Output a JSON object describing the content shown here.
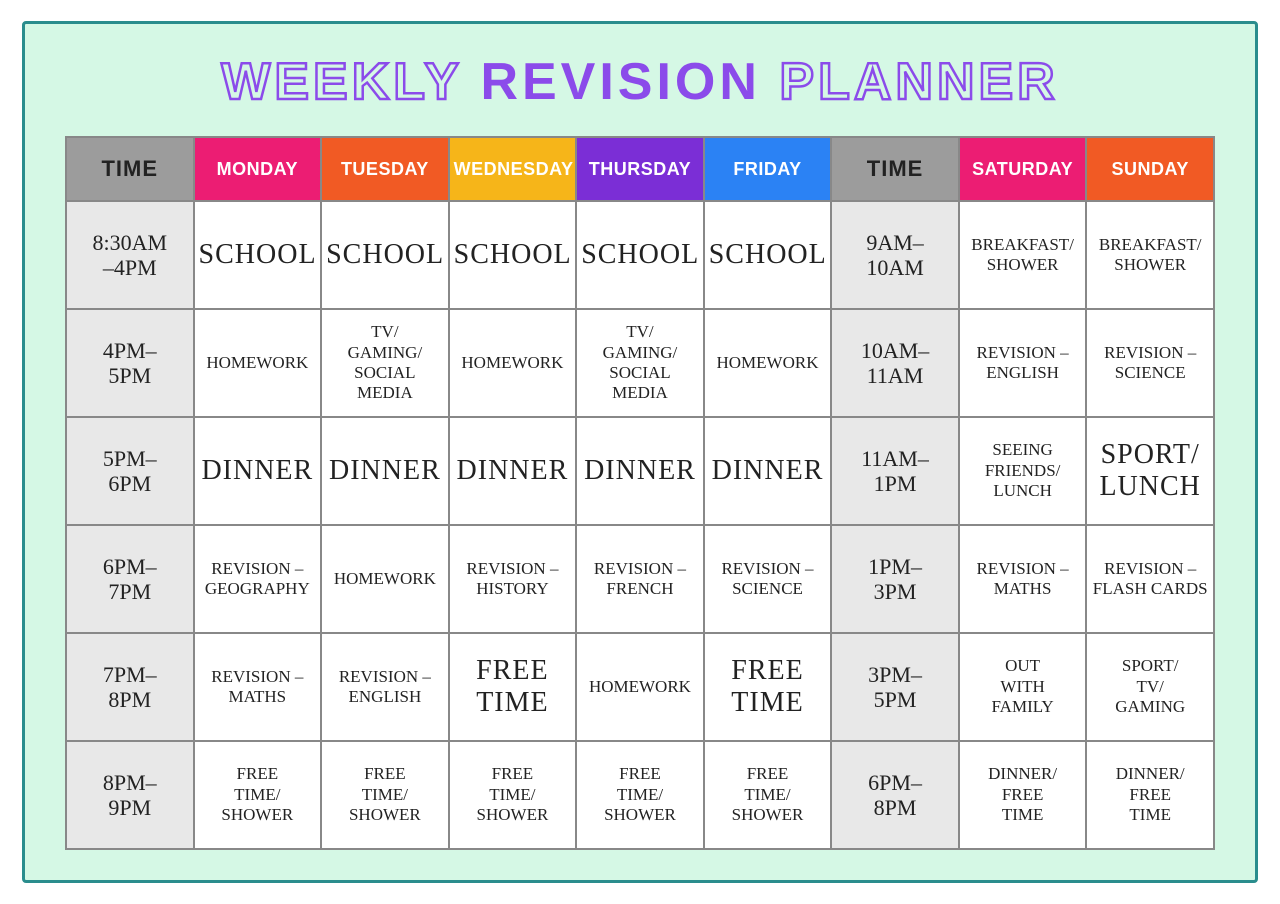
{
  "title": {
    "w1": "WEEKLY",
    "w2": "REVISION",
    "w3": "PLANNER"
  },
  "colors": {
    "time_hdr": "#9c9c9c",
    "monday": "#ec1d73",
    "tuesday": "#f15a24",
    "wednesday": "#f6b519",
    "thursday": "#7b2ed6",
    "friday": "#2b82f4",
    "saturday": "#ec1d73",
    "sunday": "#f15a24"
  },
  "headers": {
    "time1": "TIME",
    "mon": "MONDAY",
    "tue": "TUESDAY",
    "wed": "WEDNESDAY",
    "thu": "THURSDAY",
    "fri": "FRIDAY",
    "time2": "TIME",
    "sat": "SATURDAY",
    "sun": "SUNDAY"
  },
  "rows": [
    {
      "t1": "8:30AM\n–4PM",
      "mon": "SCHOOL",
      "tue": "SCHOOL",
      "wed": "SCHOOL",
      "thu": "SCHOOL",
      "fri": "SCHOOL",
      "t2": "9AM–\n10AM",
      "sat": "BREAKFAST/\nSHOWER",
      "sun": "BREAKFAST/\nSHOWER",
      "size": {
        "mon": "big",
        "tue": "big",
        "wed": "big",
        "thu": "big",
        "fri": "big",
        "sat": "small",
        "sun": "small"
      }
    },
    {
      "t1": "4PM–\n5PM",
      "mon": "HOMEWORK",
      "tue": "TV/\nGAMING/\nSOCIAL\nMEDIA",
      "wed": "HOMEWORK",
      "thu": "TV/\nGAMING/\nSOCIAL\nMEDIA",
      "fri": "HOMEWORK",
      "t2": "10AM–\n11AM",
      "sat": "REVISION –\nENGLISH",
      "sun": "REVISION –\nSCIENCE",
      "size": {
        "mon": "small",
        "tue": "small",
        "wed": "small",
        "thu": "small",
        "fri": "small",
        "sat": "small",
        "sun": "small"
      }
    },
    {
      "t1": "5PM–\n6PM",
      "mon": "DINNER",
      "tue": "DINNER",
      "wed": "DINNER",
      "thu": "DINNER",
      "fri": "DINNER",
      "t2": "11AM–\n1PM",
      "sat": "SEEING\nFRIENDS/\nLUNCH",
      "sun": "SPORT/\nLUNCH",
      "size": {
        "mon": "big",
        "tue": "big",
        "wed": "big",
        "thu": "big",
        "fri": "big",
        "sat": "small",
        "sun": "big"
      }
    },
    {
      "t1": "6PM–\n7PM",
      "mon": "REVISION –\nGEOGRAPHY",
      "tue": "HOMEWORK",
      "wed": "REVISION –\nHISTORY",
      "thu": "REVISION –\nFRENCH",
      "fri": "REVISION –\nSCIENCE",
      "t2": "1PM–\n3PM",
      "sat": "REVISION –\nMATHS",
      "sun": "REVISION –\nFLASH CARDS",
      "size": {
        "mon": "small",
        "tue": "small",
        "wed": "small",
        "thu": "small",
        "fri": "small",
        "sat": "small",
        "sun": "small"
      }
    },
    {
      "t1": "7PM–\n8PM",
      "mon": "REVISION –\nMATHS",
      "tue": "REVISION –\nENGLISH",
      "wed": "FREE\nTIME",
      "thu": "HOMEWORK",
      "fri": "FREE\nTIME",
      "t2": "3PM–\n5PM",
      "sat": "OUT\nWITH\nFAMILY",
      "sun": "SPORT/\nTV/\nGAMING",
      "size": {
        "mon": "small",
        "tue": "small",
        "wed": "big",
        "thu": "small",
        "fri": "big",
        "sat": "small",
        "sun": "small"
      }
    },
    {
      "t1": "8PM–\n9PM",
      "mon": "FREE\nTIME/\nSHOWER",
      "tue": "FREE\nTIME/\nSHOWER",
      "wed": "FREE\nTIME/\nSHOWER",
      "thu": "FREE\nTIME/\nSHOWER",
      "fri": "FREE\nTIME/\nSHOWER",
      "t2": "6PM–\n8PM",
      "sat": "DINNER/\nFREE\nTIME",
      "sun": "DINNER/\nFREE\nTIME",
      "size": {
        "mon": "small",
        "tue": "small",
        "wed": "small",
        "thu": "small",
        "fri": "small",
        "sat": "small",
        "sun": "small"
      }
    }
  ]
}
